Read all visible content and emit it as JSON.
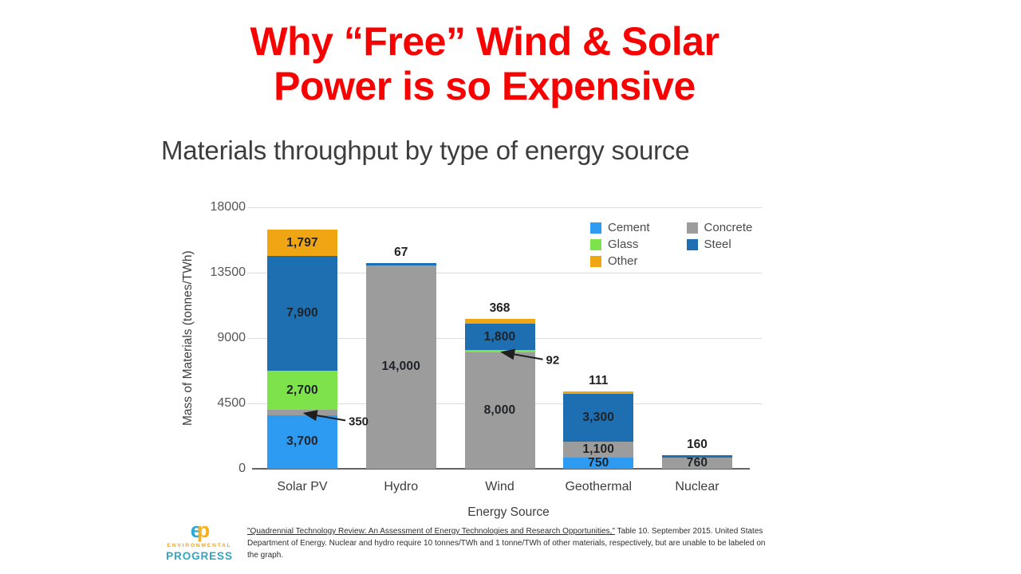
{
  "slide": {
    "title": "Why “Free” Wind & Solar\nPower is so Expensive",
    "title_color": "#f80201"
  },
  "chart_data": {
    "type": "bar",
    "subtype": "stacked",
    "title": "Materials throughput by type of energy source",
    "xlabel": "Energy Source",
    "ylabel": "Mass of Materials (tonnes/TWh)",
    "ylim": [
      0,
      18000
    ],
    "yticks": [
      0,
      4500,
      9000,
      13500,
      18000
    ],
    "grid": true,
    "legend_position": "top-right",
    "legend": [
      {
        "label": "Cement",
        "color": "#2e9bf2"
      },
      {
        "label": "Glass",
        "color": "#7ee24b"
      },
      {
        "label": "Other",
        "color": "#f0a513"
      },
      {
        "label": "Concrete",
        "color": "#9c9c9c"
      },
      {
        "label": "Steel",
        "color": "#1e6fb2"
      }
    ],
    "categories": [
      "Solar PV",
      "Hydro",
      "Wind",
      "Geothermal",
      "Nuclear"
    ],
    "bars": [
      {
        "category": "Solar PV",
        "segments": [
          {
            "series": "Cement",
            "value": 3700,
            "label": "3,700",
            "label_pos": "inside"
          },
          {
            "series": "Concrete",
            "value": 350,
            "label": "350",
            "label_pos": "arrow"
          },
          {
            "series": "Glass",
            "value": 2700,
            "label": "2,700",
            "label_pos": "inside"
          },
          {
            "series": "Steel",
            "value": 7900,
            "label": "7,900",
            "label_pos": "inside"
          },
          {
            "series": "Other",
            "value": 1797,
            "label": "1,797",
            "label_pos": "inside"
          }
        ]
      },
      {
        "category": "Hydro",
        "segments": [
          {
            "series": "Concrete",
            "value": 14000,
            "label": "14,000",
            "label_pos": "inside"
          },
          {
            "series": "Steel",
            "value": 67,
            "label": "67",
            "label_pos": "above"
          }
        ]
      },
      {
        "category": "Wind",
        "segments": [
          {
            "series": "Concrete",
            "value": 8000,
            "label": "8,000",
            "label_pos": "inside"
          },
          {
            "series": "Glass",
            "value": 92,
            "label": "92",
            "label_pos": "arrow"
          },
          {
            "series": "Steel",
            "value": 1800,
            "label": "1,800",
            "label_pos": "inside"
          },
          {
            "series": "Other",
            "value": 368,
            "label": "368",
            "label_pos": "above"
          }
        ]
      },
      {
        "category": "Geothermal",
        "segments": [
          {
            "series": "Cement",
            "value": 750,
            "label": "750",
            "label_pos": "inside"
          },
          {
            "series": "Concrete",
            "value": 1100,
            "label": "1,100",
            "label_pos": "inside"
          },
          {
            "series": "Steel",
            "value": 3300,
            "label": "3,300",
            "label_pos": "inside"
          },
          {
            "series": "Other",
            "value": 111,
            "label": "111",
            "label_pos": "above"
          }
        ]
      },
      {
        "category": "Nuclear",
        "segments": [
          {
            "series": "Concrete",
            "value": 760,
            "label": "760",
            "label_pos": "inside"
          },
          {
            "series": "Steel",
            "value": 160,
            "label": "160",
            "label_pos": "above"
          }
        ]
      }
    ]
  },
  "footer": {
    "logo": {
      "letter_e": "e",
      "letter_p": "p",
      "line1": "ENVIRONMENTAL",
      "line2": "PROGRESS"
    },
    "citation_link": "\"Quadrennial Technology Review: An Assessment of Energy Technologies and Research Opportunities,\"",
    "citation_rest": " Table 10. September 2015. United States Department of Energy. Nuclear and hydro require 10 tonnes/TWh and 1 tonne/TWh of other materials, respectively, but are unable to be labeled on the graph."
  }
}
